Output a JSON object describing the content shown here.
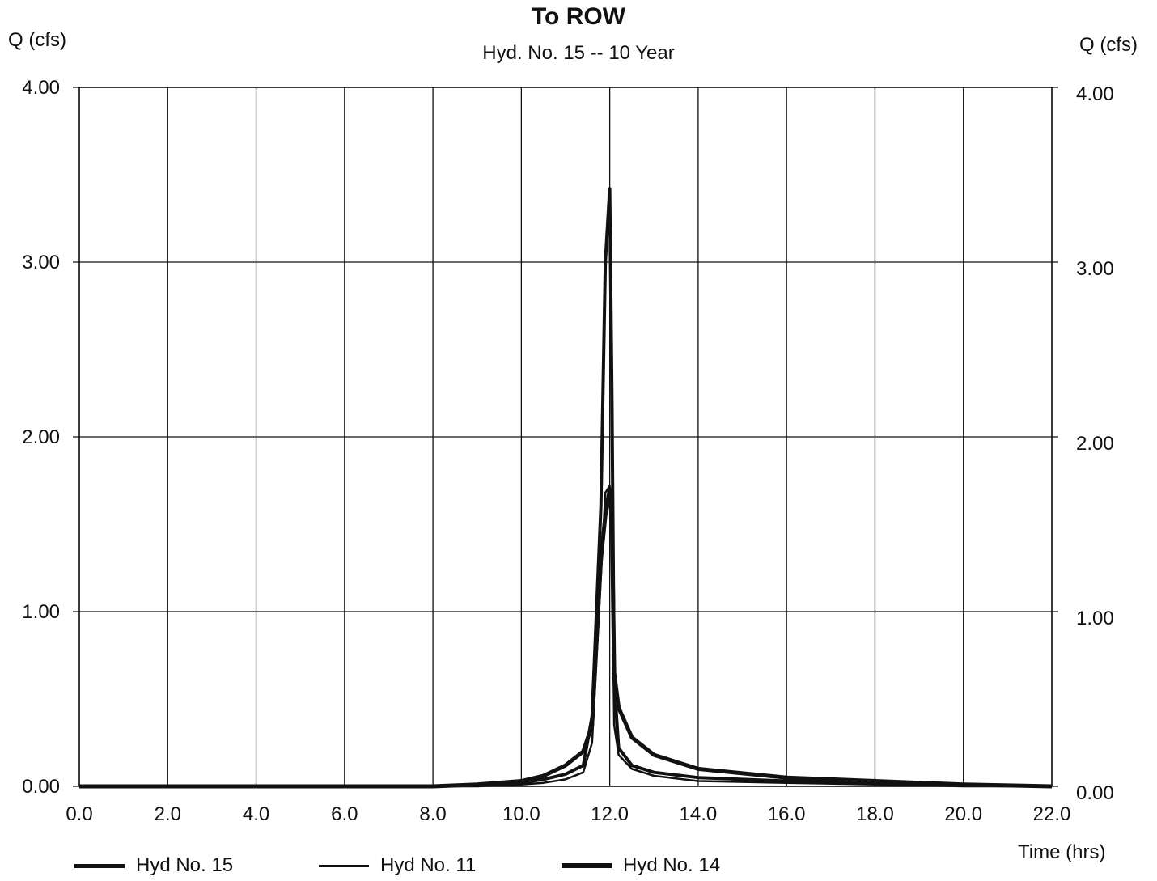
{
  "chart_data": {
    "type": "line",
    "title": "To ROW",
    "subtitle": "Hyd. No. 15 -- 10 Year",
    "ylabel_left": "Q (cfs)",
    "ylabel_right": "Q (cfs)",
    "xlabel": "Time (hrs)",
    "xlim": [
      0,
      22
    ],
    "ylim": [
      0,
      4
    ],
    "x_ticks": [
      "0.0",
      "2.0",
      "4.0",
      "6.0",
      "8.0",
      "10.0",
      "12.0",
      "14.0",
      "16.0",
      "18.0",
      "20.0",
      "22.0"
    ],
    "y_ticks": [
      "0.00",
      "1.00",
      "2.00",
      "3.00",
      "4.00"
    ],
    "grid": true,
    "legend_position": "bottom",
    "series": [
      {
        "name": "Hyd No. 15",
        "x": [
          0,
          2,
          4,
          6,
          8,
          9,
          10,
          10.5,
          11,
          11.4,
          11.6,
          11.8,
          11.9,
          12.0,
          12.05,
          12.1,
          12.2,
          12.5,
          13,
          14,
          16,
          18,
          20,
          22
        ],
        "y": [
          0,
          0,
          0,
          0,
          0,
          0.01,
          0.02,
          0.04,
          0.07,
          0.12,
          0.4,
          1.6,
          3.0,
          3.42,
          2.2,
          0.6,
          0.22,
          0.12,
          0.08,
          0.05,
          0.03,
          0.02,
          0.01,
          0.0
        ]
      },
      {
        "name": "Hyd No. 11",
        "x": [
          0,
          2,
          4,
          6,
          8,
          9,
          10,
          10.5,
          11,
          11.4,
          11.6,
          11.8,
          11.9,
          12.0,
          12.05,
          12.1,
          12.2,
          12.5,
          13,
          14,
          16,
          18,
          20,
          22
        ],
        "y": [
          0,
          0,
          0,
          0,
          0,
          0.0,
          0.01,
          0.02,
          0.04,
          0.08,
          0.25,
          1.2,
          1.68,
          1.72,
          1.3,
          0.35,
          0.18,
          0.1,
          0.06,
          0.03,
          0.02,
          0.01,
          0.0,
          0.0
        ]
      },
      {
        "name": "Hyd No. 14",
        "x": [
          0,
          2,
          4,
          6,
          8,
          9,
          10,
          10.5,
          11,
          11.4,
          11.6,
          11.8,
          11.9,
          12.0,
          12.05,
          12.1,
          12.2,
          12.5,
          13,
          14,
          16,
          18,
          20,
          22
        ],
        "y": [
          0,
          0,
          0,
          0,
          0.0,
          0.01,
          0.03,
          0.06,
          0.12,
          0.2,
          0.35,
          1.3,
          1.55,
          1.7,
          1.5,
          0.65,
          0.45,
          0.28,
          0.18,
          0.1,
          0.05,
          0.03,
          0.01,
          0.0
        ]
      }
    ]
  }
}
